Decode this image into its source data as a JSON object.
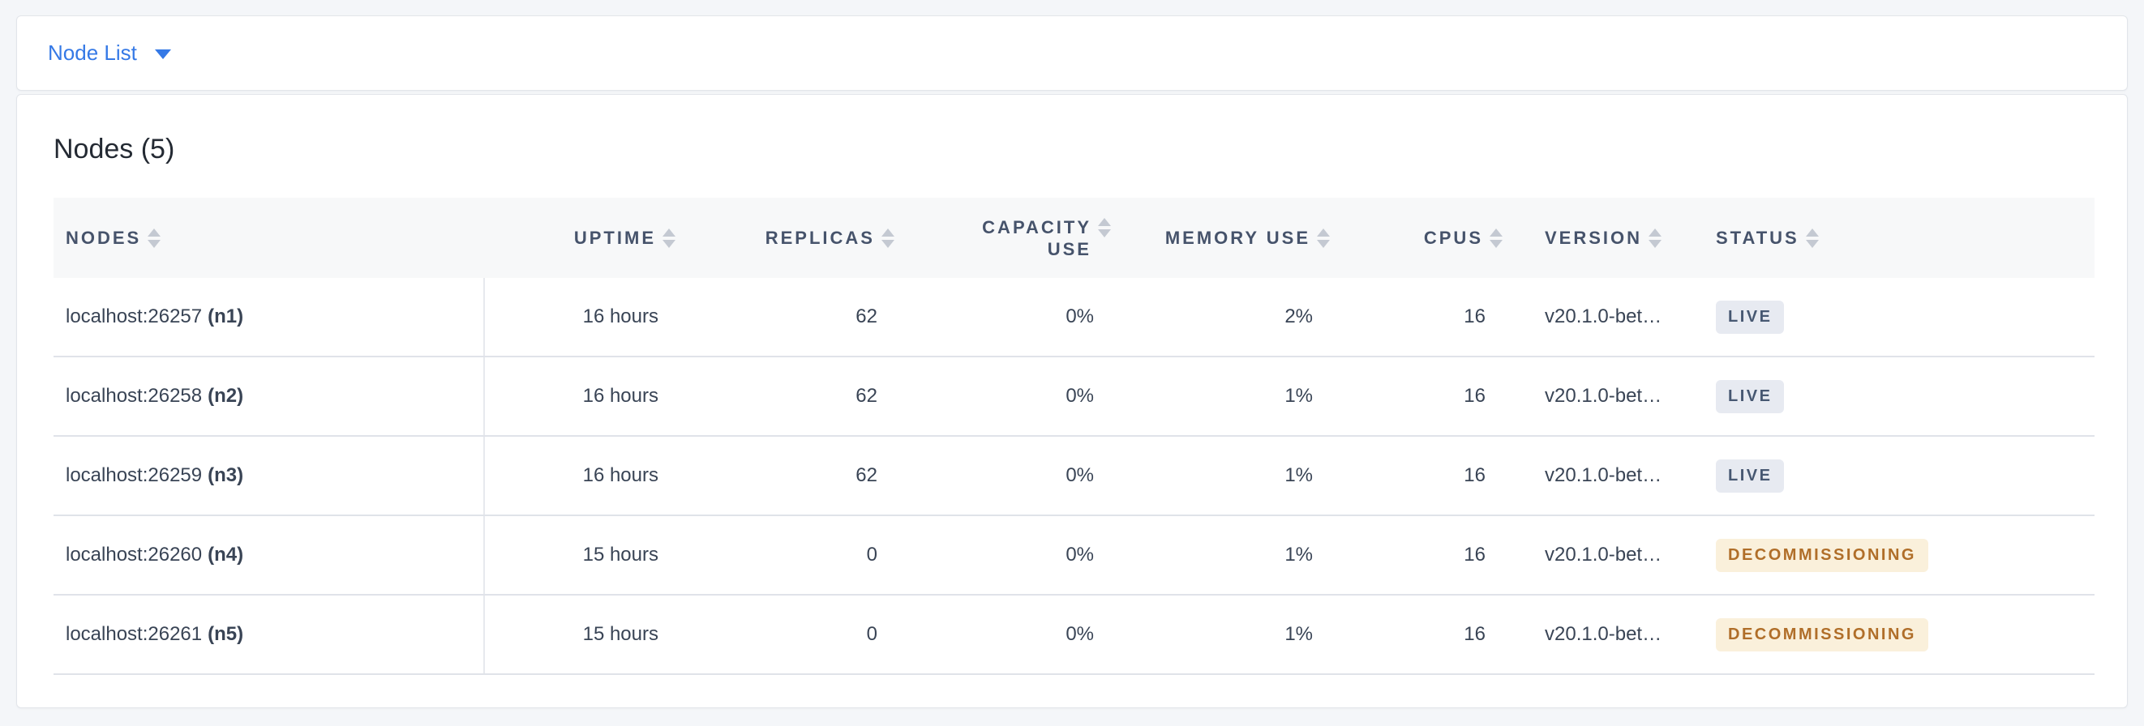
{
  "toolbar": {
    "dropdown_label": "Node List"
  },
  "card": {
    "title": "Nodes (5)"
  },
  "table": {
    "columns": [
      {
        "key": "nodes",
        "label": "NODES"
      },
      {
        "key": "uptime",
        "label": "UPTIME"
      },
      {
        "key": "replicas",
        "label": "REPLICAS"
      },
      {
        "key": "capacity",
        "label": "CAPACITY USE"
      },
      {
        "key": "memory",
        "label": "MEMORY USE"
      },
      {
        "key": "cpus",
        "label": "CPUS"
      },
      {
        "key": "version",
        "label": "VERSION"
      },
      {
        "key": "status",
        "label": "STATUS"
      }
    ],
    "rows": [
      {
        "node": "localhost:26257",
        "id": "(n1)",
        "uptime": "16 hours",
        "replicas": "62",
        "capacity": "0%",
        "memory": "2%",
        "cpus": "16",
        "version": "v20.1.0-bet…",
        "status": "LIVE"
      },
      {
        "node": "localhost:26258",
        "id": "(n2)",
        "uptime": "16 hours",
        "replicas": "62",
        "capacity": "0%",
        "memory": "1%",
        "cpus": "16",
        "version": "v20.1.0-bet…",
        "status": "LIVE"
      },
      {
        "node": "localhost:26259",
        "id": "(n3)",
        "uptime": "16 hours",
        "replicas": "62",
        "capacity": "0%",
        "memory": "1%",
        "cpus": "16",
        "version": "v20.1.0-bet…",
        "status": "LIVE"
      },
      {
        "node": "localhost:26260",
        "id": "(n4)",
        "uptime": "15 hours",
        "replicas": "0",
        "capacity": "0%",
        "memory": "1%",
        "cpus": "16",
        "version": "v20.1.0-bet…",
        "status": "DECOMMISSIONING"
      },
      {
        "node": "localhost:26261",
        "id": "(n5)",
        "uptime": "15 hours",
        "replicas": "0",
        "capacity": "0%",
        "memory": "1%",
        "cpus": "16",
        "version": "v20.1.0-bet…",
        "status": "DECOMMISSIONING"
      }
    ]
  },
  "colors": {
    "link_blue": "#3579e6",
    "live_badge_bg": "#e7eaf1",
    "live_badge_text": "#475872",
    "decommissioning_badge_bg": "#faf0db",
    "decommissioning_badge_text": "#b06e29",
    "header_text": "#46536b",
    "row_text": "#394455",
    "page_bg": "#f4f6f9"
  }
}
